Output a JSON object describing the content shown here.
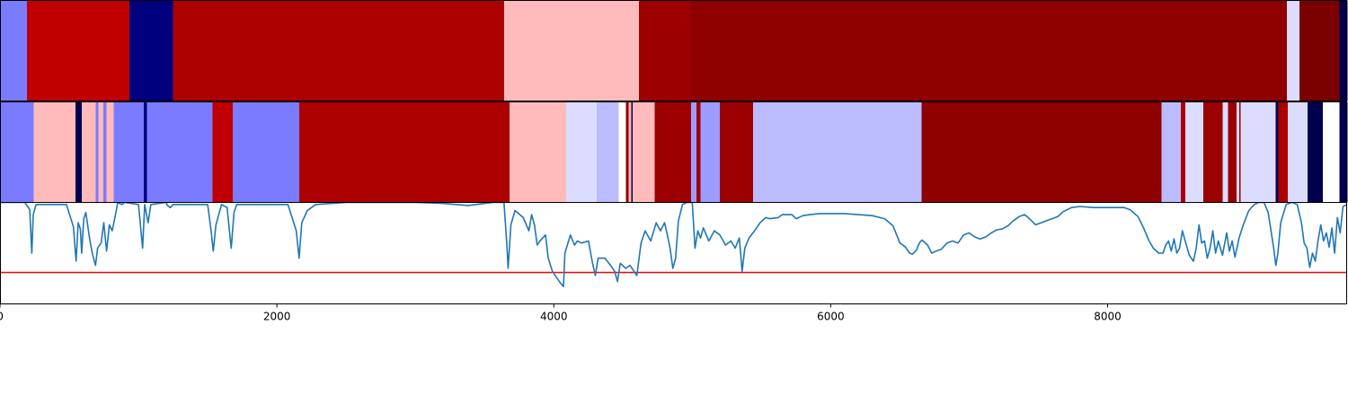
{
  "chart_data": {
    "type": "heatmap",
    "x_range": [
      0,
      9730
    ],
    "x_ticks": [
      {
        "value": 0,
        "label": "0"
      },
      {
        "value": 2000,
        "label": "2000"
      },
      {
        "value": 4000,
        "label": "4000"
      },
      {
        "value": 6000,
        "label": "6000"
      },
      {
        "value": 8000,
        "label": "8000"
      }
    ],
    "colormap": "seismic",
    "tracks": [
      {
        "segments": [
          {
            "start": 0,
            "end": 195,
            "color": "#7b7bff"
          },
          {
            "start": 195,
            "end": 935,
            "color": "#c00000"
          },
          {
            "start": 935,
            "end": 1250,
            "color": "#00007f"
          },
          {
            "start": 1250,
            "end": 3640,
            "color": "#ad0000"
          },
          {
            "start": 3640,
            "end": 4615,
            "color": "#ffbbbb"
          },
          {
            "start": 4615,
            "end": 4985,
            "color": "#9c0000"
          },
          {
            "start": 4985,
            "end": 9295,
            "color": "#8f0000"
          },
          {
            "start": 9295,
            "end": 9385,
            "color": "#dcdcff"
          },
          {
            "start": 9385,
            "end": 9675,
            "color": "#7b0000"
          },
          {
            "start": 9675,
            "end": 9730,
            "color": "#00004e"
          }
        ]
      },
      {
        "segments": [
          {
            "start": 0,
            "end": 245,
            "color": "#7b7bff"
          },
          {
            "start": 245,
            "end": 545,
            "color": "#ffbbbb"
          },
          {
            "start": 545,
            "end": 590,
            "color": "#00004e"
          },
          {
            "start": 590,
            "end": 690,
            "color": "#ffbbbb"
          },
          {
            "start": 690,
            "end": 710,
            "color": "#7b7bff"
          },
          {
            "start": 710,
            "end": 745,
            "color": "#ffbbbb"
          },
          {
            "start": 745,
            "end": 770,
            "color": "#7b7bff"
          },
          {
            "start": 770,
            "end": 820,
            "color": "#ffbbbb"
          },
          {
            "start": 820,
            "end": 1040,
            "color": "#7b7bff"
          },
          {
            "start": 1040,
            "end": 1060,
            "color": "#00007f"
          },
          {
            "start": 1060,
            "end": 1535,
            "color": "#7b7bff"
          },
          {
            "start": 1535,
            "end": 1680,
            "color": "#c00000"
          },
          {
            "start": 1680,
            "end": 2160,
            "color": "#7b7bff"
          },
          {
            "start": 2160,
            "end": 3680,
            "color": "#ad0000"
          },
          {
            "start": 3680,
            "end": 4090,
            "color": "#ffbbbb"
          },
          {
            "start": 4090,
            "end": 4310,
            "color": "#dcdcff"
          },
          {
            "start": 4310,
            "end": 4470,
            "color": "#bbbbff"
          },
          {
            "start": 4470,
            "end": 4520,
            "color": "#ffffff"
          },
          {
            "start": 4520,
            "end": 4540,
            "color": "#8f0000"
          },
          {
            "start": 4540,
            "end": 4560,
            "color": "#ffbbbb"
          },
          {
            "start": 4560,
            "end": 4570,
            "color": "#00004e"
          },
          {
            "start": 4570,
            "end": 4730,
            "color": "#ffbbbb"
          },
          {
            "start": 4730,
            "end": 4990,
            "color": "#9c0000"
          },
          {
            "start": 4990,
            "end": 5030,
            "color": "#9c9cff"
          },
          {
            "start": 5030,
            "end": 5060,
            "color": "#9c0000"
          },
          {
            "start": 5060,
            "end": 5200,
            "color": "#9c9cff"
          },
          {
            "start": 5200,
            "end": 5440,
            "color": "#9c0000"
          },
          {
            "start": 5440,
            "end": 6655,
            "color": "#bbbbff"
          },
          {
            "start": 6655,
            "end": 8390,
            "color": "#8f0000"
          },
          {
            "start": 8390,
            "end": 8530,
            "color": "#bbbbff"
          },
          {
            "start": 8530,
            "end": 8560,
            "color": "#ad0000"
          },
          {
            "start": 8560,
            "end": 8690,
            "color": "#dcdcff"
          },
          {
            "start": 8690,
            "end": 8830,
            "color": "#9c0000"
          },
          {
            "start": 8830,
            "end": 8870,
            "color": "#dcdcff"
          },
          {
            "start": 8870,
            "end": 8930,
            "color": "#9c0000"
          },
          {
            "start": 8930,
            "end": 8950,
            "color": "#dcdcff"
          },
          {
            "start": 8950,
            "end": 8960,
            "color": "#9c0000"
          },
          {
            "start": 8960,
            "end": 9215,
            "color": "#dcdcff"
          },
          {
            "start": 9215,
            "end": 9235,
            "color": "#00004e"
          },
          {
            "start": 9235,
            "end": 9300,
            "color": "#ad0000"
          },
          {
            "start": 9300,
            "end": 9445,
            "color": "#dcdcff"
          },
          {
            "start": 9445,
            "end": 9555,
            "color": "#00004e"
          },
          {
            "start": 9555,
            "end": 9675,
            "color": "#ffffff"
          },
          {
            "start": 9675,
            "end": 9730,
            "color": "#00004e"
          }
        ]
      }
    ],
    "line_panel": {
      "y_range": [
        0,
        1
      ],
      "line_color": "#1f77b4",
      "threshold": {
        "y": 0.31,
        "color": "#ff0000"
      },
      "points": [
        [
          0,
          1.0
        ],
        [
          180,
          1.0
        ],
        [
          215,
          0.93
        ],
        [
          230,
          0.5
        ],
        [
          240,
          0.88
        ],
        [
          260,
          0.98
        ],
        [
          480,
          0.98
        ],
        [
          530,
          0.76
        ],
        [
          550,
          0.42
        ],
        [
          565,
          0.8
        ],
        [
          580,
          0.74
        ],
        [
          590,
          0.5
        ],
        [
          605,
          0.84
        ],
        [
          620,
          0.9
        ],
        [
          650,
          0.62
        ],
        [
          670,
          0.48
        ],
        [
          690,
          0.38
        ],
        [
          705,
          0.55
        ],
        [
          730,
          0.6
        ],
        [
          750,
          0.8
        ],
        [
          770,
          0.52
        ],
        [
          790,
          0.78
        ],
        [
          810,
          0.72
        ],
        [
          830,
          0.85
        ],
        [
          850,
          1.0
        ],
        [
          880,
          0.98
        ],
        [
          900,
          1.0
        ],
        [
          1000,
          0.98
        ],
        [
          1030,
          0.55
        ],
        [
          1045,
          0.98
        ],
        [
          1070,
          0.8
        ],
        [
          1090,
          0.98
        ],
        [
          1200,
          1.0
        ],
        [
          1210,
          0.97
        ],
        [
          1230,
          0.95
        ],
        [
          1250,
          0.98
        ],
        [
          1380,
          0.98
        ],
        [
          1500,
          0.98
        ],
        [
          1525,
          0.72
        ],
        [
          1540,
          0.52
        ],
        [
          1560,
          0.78
        ],
        [
          1600,
          0.98
        ],
        [
          1640,
          0.95
        ],
        [
          1670,
          0.55
        ],
        [
          1690,
          0.9
        ],
        [
          1710,
          0.98
        ],
        [
          2080,
          0.98
        ],
        [
          2140,
          0.72
        ],
        [
          2160,
          0.45
        ],
        [
          2180,
          0.8
        ],
        [
          2220,
          0.92
        ],
        [
          2280,
          0.98
        ],
        [
          2500,
          1.0
        ],
        [
          3000,
          1.0
        ],
        [
          3200,
          0.99
        ],
        [
          3380,
          0.97
        ],
        [
          3500,
          0.99
        ],
        [
          3560,
          1.0
        ],
        [
          3640,
          1.0
        ],
        [
          3660,
          0.6
        ],
        [
          3670,
          0.35
        ],
        [
          3690,
          0.78
        ],
        [
          3720,
          0.92
        ],
        [
          3780,
          0.85
        ],
        [
          3820,
          0.72
        ],
        [
          3840,
          0.88
        ],
        [
          3860,
          0.78
        ],
        [
          3880,
          0.58
        ],
        [
          3900,
          0.62
        ],
        [
          3940,
          0.68
        ],
        [
          3960,
          0.45
        ],
        [
          3990,
          0.32
        ],
        [
          4040,
          0.22
        ],
        [
          4070,
          0.17
        ],
        [
          4080,
          0.5
        ],
        [
          4120,
          0.68
        ],
        [
          4150,
          0.58
        ],
        [
          4170,
          0.62
        ],
        [
          4200,
          0.6
        ],
        [
          4250,
          0.62
        ],
        [
          4280,
          0.4
        ],
        [
          4300,
          0.28
        ],
        [
          4320,
          0.45
        ],
        [
          4370,
          0.45
        ],
        [
          4410,
          0.38
        ],
        [
          4440,
          0.32
        ],
        [
          4460,
          0.22
        ],
        [
          4480,
          0.4
        ],
        [
          4520,
          0.35
        ],
        [
          4550,
          0.38
        ],
        [
          4580,
          0.32
        ],
        [
          4600,
          0.28
        ],
        [
          4630,
          0.6
        ],
        [
          4660,
          0.72
        ],
        [
          4700,
          0.62
        ],
        [
          4740,
          0.8
        ],
        [
          4770,
          0.72
        ],
        [
          4800,
          0.8
        ],
        [
          4820,
          0.68
        ],
        [
          4840,
          0.55
        ],
        [
          4860,
          0.35
        ],
        [
          4880,
          0.45
        ],
        [
          4900,
          0.82
        ],
        [
          4930,
          0.98
        ],
        [
          4960,
          1.0
        ],
        [
          5000,
          1.0
        ],
        [
          5020,
          0.55
        ],
        [
          5040,
          0.72
        ],
        [
          5060,
          0.65
        ],
        [
          5080,
          0.75
        ],
        [
          5120,
          0.62
        ],
        [
          5160,
          0.72
        ],
        [
          5200,
          0.68
        ],
        [
          5240,
          0.58
        ],
        [
          5280,
          0.62
        ],
        [
          5310,
          0.55
        ],
        [
          5340,
          0.65
        ],
        [
          5360,
          0.32
        ],
        [
          5380,
          0.55
        ],
        [
          5410,
          0.65
        ],
        [
          5450,
          0.72
        ],
        [
          5490,
          0.8
        ],
        [
          5530,
          0.85
        ],
        [
          5560,
          0.84
        ],
        [
          5620,
          0.85
        ],
        [
          5650,
          0.88
        ],
        [
          5720,
          0.88
        ],
        [
          5750,
          0.84
        ],
        [
          5800,
          0.87
        ],
        [
          5850,
          0.88
        ],
        [
          5920,
          0.89
        ],
        [
          6000,
          0.89
        ],
        [
          6100,
          0.89
        ],
        [
          6200,
          0.88
        ],
        [
          6300,
          0.87
        ],
        [
          6390,
          0.84
        ],
        [
          6450,
          0.77
        ],
        [
          6500,
          0.6
        ],
        [
          6540,
          0.56
        ],
        [
          6570,
          0.5
        ],
        [
          6590,
          0.49
        ],
        [
          6620,
          0.53
        ],
        [
          6640,
          0.6
        ],
        [
          6660,
          0.63
        ],
        [
          6700,
          0.58
        ],
        [
          6730,
          0.5
        ],
        [
          6760,
          0.52
        ],
        [
          6800,
          0.54
        ],
        [
          6840,
          0.6
        ],
        [
          6880,
          0.62
        ],
        [
          6920,
          0.6
        ],
        [
          6960,
          0.68
        ],
        [
          7000,
          0.7
        ],
        [
          7040,
          0.66
        ],
        [
          7080,
          0.64
        ],
        [
          7120,
          0.66
        ],
        [
          7160,
          0.7
        ],
        [
          7200,
          0.73
        ],
        [
          7240,
          0.74
        ],
        [
          7280,
          0.77
        ],
        [
          7320,
          0.82
        ],
        [
          7360,
          0.86
        ],
        [
          7400,
          0.88
        ],
        [
          7420,
          0.86
        ],
        [
          7450,
          0.82
        ],
        [
          7480,
          0.78
        ],
        [
          7520,
          0.8
        ],
        [
          7560,
          0.82
        ],
        [
          7600,
          0.84
        ],
        [
          7640,
          0.86
        ],
        [
          7680,
          0.91
        ],
        [
          7740,
          0.95
        ],
        [
          7800,
          0.96
        ],
        [
          7900,
          0.95
        ],
        [
          8000,
          0.95
        ],
        [
          8120,
          0.95
        ],
        [
          8160,
          0.93
        ],
        [
          8220,
          0.86
        ],
        [
          8260,
          0.75
        ],
        [
          8300,
          0.62
        ],
        [
          8330,
          0.55
        ],
        [
          8370,
          0.5
        ],
        [
          8400,
          0.5
        ],
        [
          8420,
          0.58
        ],
        [
          8440,
          0.62
        ],
        [
          8460,
          0.52
        ],
        [
          8480,
          0.64
        ],
        [
          8500,
          0.5
        ],
        [
          8520,
          0.55
        ],
        [
          8540,
          0.72
        ],
        [
          8560,
          0.62
        ],
        [
          8590,
          0.48
        ],
        [
          8620,
          0.42
        ],
        [
          8640,
          0.55
        ],
        [
          8660,
          0.78
        ],
        [
          8680,
          0.6
        ],
        [
          8700,
          0.62
        ],
        [
          8720,
          0.45
        ],
        [
          8740,
          0.55
        ],
        [
          8760,
          0.72
        ],
        [
          8780,
          0.5
        ],
        [
          8800,
          0.62
        ],
        [
          8830,
          0.48
        ],
        [
          8860,
          0.7
        ],
        [
          8880,
          0.52
        ],
        [
          8900,
          0.62
        ],
        [
          8920,
          0.46
        ],
        [
          8950,
          0.65
        ],
        [
          8980,
          0.78
        ],
        [
          9020,
          0.92
        ],
        [
          9060,
          0.98
        ],
        [
          9090,
          1.0
        ],
        [
          9130,
          1.0
        ],
        [
          9160,
          0.9
        ],
        [
          9200,
          0.55
        ],
        [
          9215,
          0.38
        ],
        [
          9230,
          0.5
        ],
        [
          9250,
          0.8
        ],
        [
          9290,
          0.98
        ],
        [
          9330,
          1.0
        ],
        [
          9370,
          0.98
        ],
        [
          9400,
          0.8
        ],
        [
          9420,
          0.6
        ],
        [
          9440,
          0.55
        ],
        [
          9460,
          0.36
        ],
        [
          9480,
          0.5
        ],
        [
          9500,
          0.42
        ],
        [
          9520,
          0.62
        ],
        [
          9540,
          0.78
        ],
        [
          9560,
          0.62
        ],
        [
          9580,
          0.7
        ],
        [
          9600,
          0.56
        ],
        [
          9620,
          0.75
        ],
        [
          9640,
          0.5
        ],
        [
          9660,
          0.85
        ],
        [
          9680,
          0.7
        ],
        [
          9700,
          0.96
        ],
        [
          9730,
          0.98
        ]
      ]
    }
  }
}
